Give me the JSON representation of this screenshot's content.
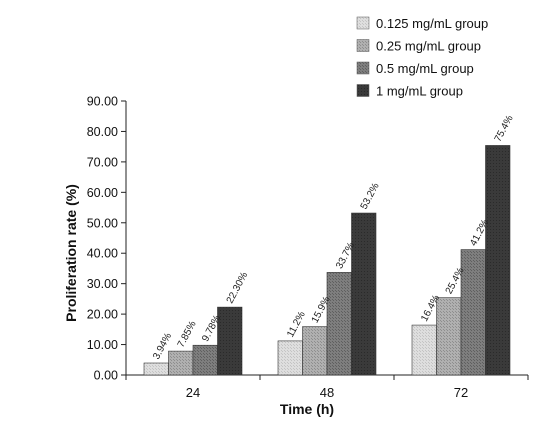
{
  "chart_data": {
    "type": "bar",
    "categories": [
      "24",
      "48",
      "72"
    ],
    "series": [
      {
        "name": "0.125 mg/mL group",
        "values": [
          3.94,
          11.2,
          16.4
        ],
        "labels": [
          "3.94%",
          "11.2%",
          "16.4%"
        ],
        "color": "#d8d8d8",
        "pattern": "fine"
      },
      {
        "name": "0.25 mg/mL group",
        "values": [
          7.85,
          15.9,
          25.4
        ],
        "labels": [
          "7.85%",
          "15.9%",
          "25.4%"
        ],
        "color": "#ababab",
        "pattern": "medium"
      },
      {
        "name": "0.5 mg/mL group",
        "values": [
          9.78,
          33.7,
          41.2
        ],
        "labels": [
          "9.78%",
          "33.7%",
          "41.2%"
        ],
        "color": "#7b7b7b",
        "pattern": "dark"
      },
      {
        "name": "1 mg/mL group",
        "values": [
          22.3,
          53.2,
          75.4
        ],
        "labels": [
          "22.30%",
          "53.2%",
          "75.4%"
        ],
        "color": "#3a3a3a",
        "pattern": "solid"
      }
    ],
    "xlabel": "Time (h)",
    "ylabel": "Proliferation rate (%)",
    "ylim": [
      0,
      90
    ],
    "yticks": [
      "0.00",
      "10.00",
      "20.00",
      "30.00",
      "40.00",
      "50.00",
      "60.00",
      "70.00",
      "80.00",
      "90.00"
    ],
    "grid": false,
    "legend_position": "top-right"
  }
}
